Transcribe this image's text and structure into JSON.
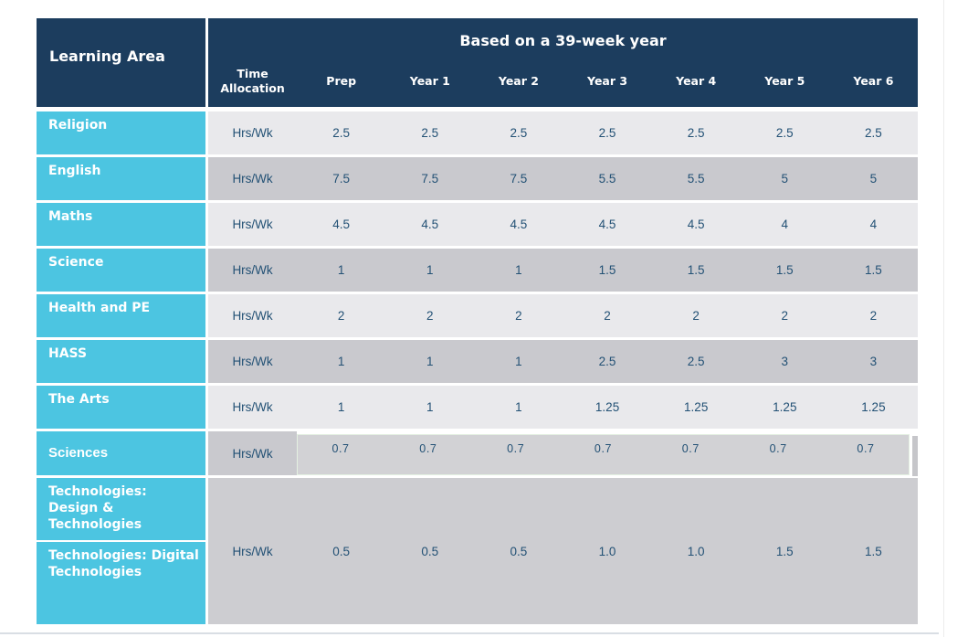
{
  "theme": {
    "header_navy": "#1c3d5e",
    "label_cyan": "#4cc5e1",
    "row_light_gray": "#e9e9ec",
    "row_dark_gray": "#c9c9ce",
    "value_text_blue": "#235175"
  },
  "table": {
    "corner_label": "Learning Area",
    "span_header": "Based on a 39-week year",
    "columns": [
      "Time Allocation",
      "Prep",
      "Year 1",
      "Year 2",
      "Year 3",
      "Year 4",
      "Year 5",
      "Year 6"
    ],
    "rows": [
      {
        "label": "Religion",
        "unit": "Hrs/Wk",
        "values": [
          "2.5",
          "2.5",
          "2.5",
          "2.5",
          "2.5",
          "2.5",
          "2.5"
        ]
      },
      {
        "label": "English",
        "unit": "Hrs/Wk",
        "values": [
          "7.5",
          "7.5",
          "7.5",
          "5.5",
          "5.5",
          "5",
          "5"
        ]
      },
      {
        "label": "Maths",
        "unit": "Hrs/Wk",
        "values": [
          "4.5",
          "4.5",
          "4.5",
          "4.5",
          "4.5",
          "4",
          "4"
        ]
      },
      {
        "label": "Science",
        "unit": "Hrs/Wk",
        "values": [
          "1",
          "1",
          "1",
          "1.5",
          "1.5",
          "1.5",
          "1.5"
        ]
      },
      {
        "label": "Health and PE",
        "unit": "Hrs/Wk",
        "values": [
          "2",
          "2",
          "2",
          "2",
          "2",
          "2",
          "2"
        ]
      },
      {
        "label": "HASS",
        "unit": "Hrs/Wk",
        "values": [
          "1",
          "1",
          "1",
          "2.5",
          "2.5",
          "3",
          "3"
        ]
      },
      {
        "label": "The Arts",
        "unit": "Hrs/Wk",
        "values": [
          "1",
          "1",
          "1",
          "1.25",
          "1.25",
          "1.25",
          "1.25"
        ]
      },
      {
        "label": "Sciences",
        "unit": "Hrs/Wk",
        "values": [
          "0.7",
          "0.7",
          "0.7",
          "0.7",
          "0.7",
          "0.7",
          "0.7"
        ]
      },
      {
        "labels": [
          "Technologies: Design & Technologies",
          "Technologies: Digital Technologies"
        ],
        "unit": "Hrs/Wk",
        "values": [
          "0.5",
          "0.5",
          "0.5",
          "1.0",
          "1.0",
          "1.5",
          "1.5"
        ]
      }
    ]
  }
}
